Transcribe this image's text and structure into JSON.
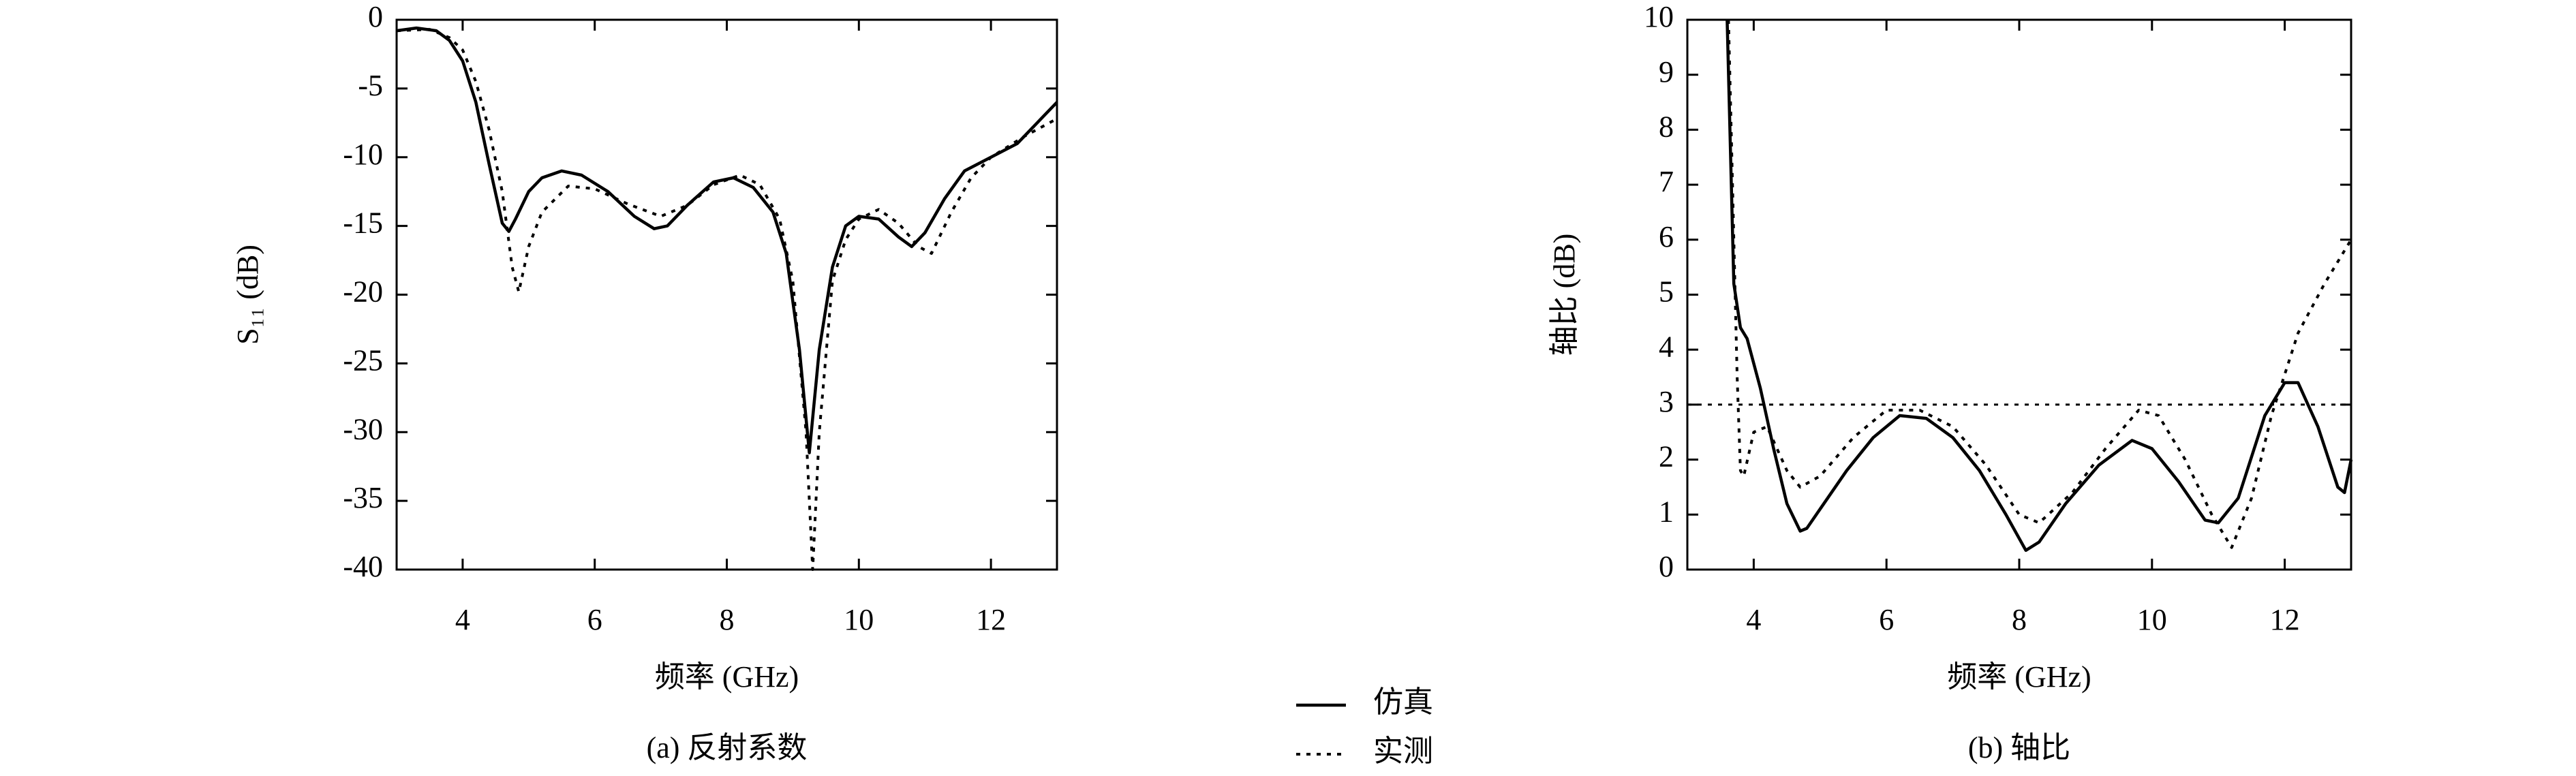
{
  "chart_data": [
    {
      "type": "line",
      "ylabel": "S₁₁ (dB)",
      "xlabel": "频率 (GHz)",
      "caption": "(a) 反射系数",
      "xlim": [
        3,
        13
      ],
      "ylim": [
        -40,
        0
      ],
      "xticks": [
        4,
        6,
        8,
        10,
        12
      ],
      "yticks": [
        0,
        -5,
        -10,
        -15,
        -20,
        -25,
        -30,
        -35,
        -40
      ],
      "series": [
        {
          "name": "仿真",
          "color": "#000000",
          "dash": "solid",
          "x": [
            3,
            3.3,
            3.6,
            3.8,
            4.0,
            4.2,
            4.4,
            4.6,
            4.7,
            4.8,
            5.0,
            5.2,
            5.5,
            5.8,
            6.2,
            6.6,
            6.9,
            7.1,
            7.4,
            7.8,
            8.1,
            8.4,
            8.7,
            8.9,
            9.1,
            9.25,
            9.4,
            9.6,
            9.8,
            10.0,
            10.3,
            10.6,
            10.8,
            11.0,
            11.3,
            11.6,
            12.0,
            12.4,
            12.8,
            13
          ],
          "values": [
            -0.8,
            -0.6,
            -0.8,
            -1.5,
            -3,
            -6,
            -10.5,
            -14.8,
            -15.4,
            -14.5,
            -12.5,
            -11.5,
            -11,
            -11.3,
            -12.5,
            -14.3,
            -15.2,
            -15,
            -13.5,
            -11.8,
            -11.5,
            -12.2,
            -14,
            -17,
            -24,
            -31.5,
            -24,
            -18,
            -15,
            -14.3,
            -14.5,
            -15.8,
            -16.5,
            -15.5,
            -13,
            -11,
            -10,
            -9,
            -7,
            -6
          ]
        },
        {
          "name": "实测",
          "color": "#000000",
          "dash": "dotted",
          "x": [
            3,
            3.5,
            3.8,
            4.0,
            4.2,
            4.4,
            4.6,
            4.75,
            4.85,
            5.0,
            5.2,
            5.6,
            6.0,
            6.5,
            7.0,
            7.4,
            7.8,
            8.2,
            8.5,
            8.8,
            9.0,
            9.2,
            9.3,
            9.4,
            9.6,
            9.8,
            10.0,
            10.3,
            10.6,
            10.9,
            11.1,
            11.4,
            11.7,
            12.0,
            12.5,
            13
          ],
          "values": [
            -0.8,
            -0.7,
            -1.3,
            -2.2,
            -4.5,
            -8,
            -12.5,
            -18,
            -19.8,
            -16.5,
            -14,
            -12.1,
            -12.3,
            -13.4,
            -14.3,
            -13.5,
            -12,
            -11.3,
            -12,
            -14.5,
            -19,
            -30,
            -40,
            -30,
            -19,
            -16,
            -14.5,
            -13.8,
            -14.8,
            -16.5,
            -17,
            -14,
            -11.5,
            -10,
            -8.5,
            -7.2
          ]
        }
      ]
    },
    {
      "type": "line",
      "ylabel": "轴比 (dB)",
      "xlabel": "频率 (GHz)",
      "caption": "(b) 轴比",
      "xlim": [
        3,
        13
      ],
      "ylim": [
        0,
        10
      ],
      "xticks": [
        4,
        6,
        8,
        10,
        12
      ],
      "yticks": [
        0,
        1,
        2,
        3,
        4,
        5,
        6,
        7,
        8,
        9,
        10
      ],
      "hline": 3,
      "series": [
        {
          "color": "#000000",
          "dash": "solid",
          "x": [
            3.6,
            3.7,
            3.8,
            3.9,
            4.1,
            4.3,
            4.5,
            4.7,
            4.8,
            5.0,
            5.4,
            5.8,
            6.2,
            6.6,
            7.0,
            7.4,
            7.8,
            8.1,
            8.3,
            8.7,
            9.2,
            9.7,
            10.0,
            10.4,
            10.8,
            11.0,
            11.3,
            11.7,
            12.0,
            12.2,
            12.5,
            12.8,
            12.9,
            13
          ],
          "values": [
            10,
            5.2,
            4.4,
            4.2,
            3.3,
            2.2,
            1.2,
            0.7,
            0.75,
            1.1,
            1.8,
            2.4,
            2.8,
            2.75,
            2.4,
            1.8,
            1.0,
            0.35,
            0.5,
            1.2,
            1.9,
            2.35,
            2.2,
            1.6,
            0.9,
            0.85,
            1.3,
            2.8,
            3.4,
            3.4,
            2.6,
            1.5,
            1.4,
            2.0
          ]
        },
        {
          "color": "#000000",
          "dash": "dotted",
          "x": [
            3.62,
            3.75,
            3.8,
            3.85,
            4.0,
            4.2,
            4.5,
            4.7,
            5.0,
            5.5,
            6.0,
            6.5,
            7.0,
            7.5,
            8.0,
            8.3,
            8.8,
            9.3,
            9.8,
            10.1,
            10.5,
            10.9,
            11.2,
            11.5,
            11.8,
            12.2,
            12.6,
            13
          ],
          "values": [
            10,
            3.5,
            1.8,
            1.7,
            2.5,
            2.6,
            1.8,
            1.5,
            1.7,
            2.4,
            2.9,
            2.9,
            2.6,
            1.9,
            1.0,
            0.85,
            1.4,
            2.2,
            2.9,
            2.8,
            2.0,
            1.0,
            0.4,
            1.3,
            2.8,
            4.3,
            5.2,
            6.0
          ]
        }
      ]
    }
  ]
}
